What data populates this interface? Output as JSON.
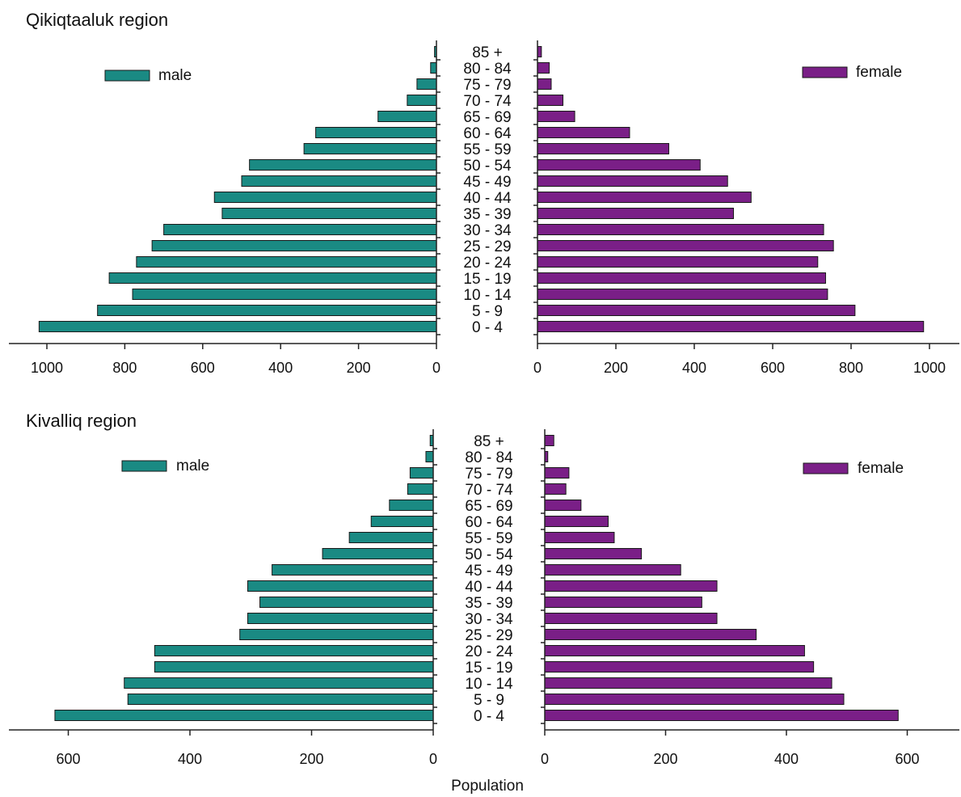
{
  "chart_data": [
    {
      "type": "bar",
      "title": "Qikiqtaaluk region",
      "orientation": "horizontal-population-pyramid",
      "categories": [
        "85 +",
        "80 - 84",
        "75 - 79",
        "70 - 74",
        "65 - 69",
        "60 - 64",
        "55 - 59",
        "50 - 54",
        "45 - 49",
        "40 - 44",
        "35 - 39",
        "30 - 34",
        "25 - 29",
        "20 - 24",
        "15 - 19",
        "10 - 14",
        "5 - 9",
        "0 - 4"
      ],
      "series": [
        {
          "name": "male",
          "color": "#1a8a83",
          "values": [
            5,
            15,
            50,
            75,
            150,
            310,
            340,
            480,
            500,
            570,
            550,
            700,
            730,
            770,
            840,
            780,
            870,
            1020
          ]
        },
        {
          "name": "female",
          "color": "#7a1f87",
          "values": [
            10,
            30,
            35,
            65,
            95,
            235,
            335,
            415,
            485,
            545,
            500,
            730,
            755,
            715,
            735,
            740,
            810,
            985
          ]
        }
      ],
      "xlim_male": [
        0,
        1000
      ],
      "xlim_female": [
        0,
        1000
      ],
      "ticks": [
        0,
        200,
        400,
        600,
        800,
        1000
      ],
      "tick_labels": [
        "0",
        "200",
        "400",
        "600",
        "800",
        "1000"
      ],
      "grid": false,
      "legend": {
        "male": "top-left",
        "female": "top-right"
      }
    },
    {
      "type": "bar",
      "title": "Kivalliq region",
      "orientation": "horizontal-population-pyramid",
      "categories": [
        "85 +",
        "80 - 84",
        "75 - 79",
        "70 - 74",
        "65 - 69",
        "60 - 64",
        "55 - 59",
        "50 - 54",
        "45 - 49",
        "40 - 44",
        "35 - 39",
        "30 - 34",
        "25 - 29",
        "20 - 24",
        "15 - 19",
        "10 - 14",
        "5 - 9",
        "0 - 4"
      ],
      "series": [
        {
          "name": "male",
          "color": "#1a8a83",
          "values": [
            5,
            12,
            38,
            42,
            72,
            102,
            138,
            182,
            265,
            305,
            285,
            305,
            318,
            458,
            458,
            508,
            502,
            622
          ]
        },
        {
          "name": "female",
          "color": "#7a1f87",
          "values": [
            15,
            5,
            40,
            35,
            60,
            105,
            115,
            160,
            225,
            285,
            260,
            285,
            350,
            430,
            445,
            475,
            495,
            585
          ]
        }
      ],
      "xlim_male": [
        0,
        700
      ],
      "xlim_female": [
        0,
        700
      ],
      "ticks": [
        0,
        200,
        400,
        600
      ],
      "tick_labels": [
        "0",
        "200",
        "400",
        "600"
      ],
      "grid": false,
      "legend": {
        "male": "top-left",
        "female": "top-right"
      }
    }
  ],
  "xlabel": "Population"
}
